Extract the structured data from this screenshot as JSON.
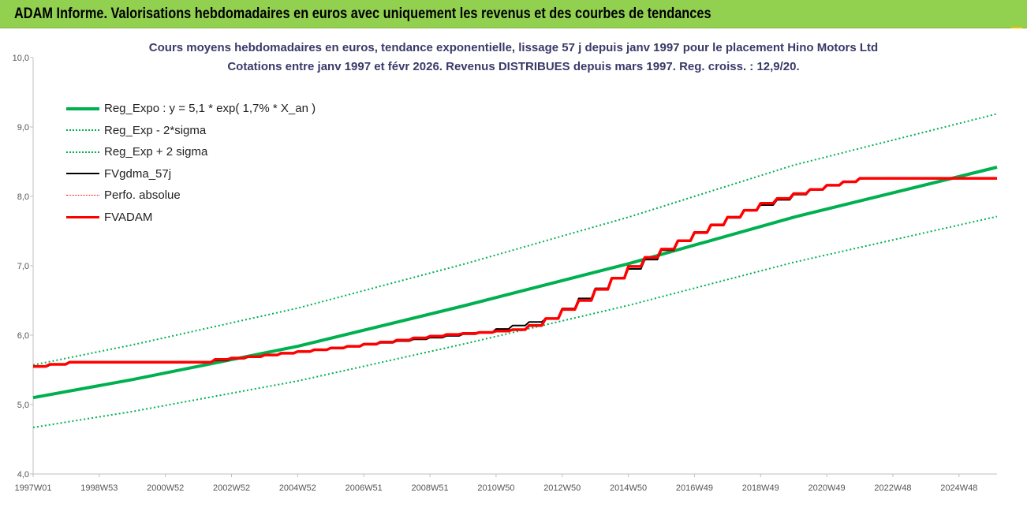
{
  "banner": {
    "title": "ADAM Informe. Valorisations hebdomadaires en euros avec uniquement les revenus et des courbes de tendances"
  },
  "colors": {
    "banner_bg": "#92d050",
    "reg_expo": "#00b050",
    "fvadam": "#ff0000",
    "fvgdma": "#000000",
    "perfo": "#ff0000"
  },
  "chart_data": {
    "type": "line",
    "title_line1": "Cours moyens hebdomadaires en euros, tendance exponentielle, lissage 57 j depuis janv 1997 pour le placement Hino Motors Ltd",
    "title_line2": "Cotations entre janv 1997 et févr 2026. Revenus DISTRIBUES depuis mars 1997. Reg. croiss. : 12,9/20.",
    "xlabel": "",
    "ylabel": "",
    "ylim": [
      4.0,
      10.0
    ],
    "y_ticks": [
      "4,0",
      "5,0",
      "6,0",
      "7,0",
      "8,0",
      "9,0",
      "10,0"
    ],
    "x_tick_labels": [
      "1997W01",
      "1998W53",
      "2000W52",
      "2002W52",
      "2004W52",
      "2006W51",
      "2008W51",
      "2010W50",
      "2012W50",
      "2014W50",
      "2016W49",
      "2018W49",
      "2020W49",
      "2022W48",
      "2024W48"
    ],
    "x_range_years": [
      1997.0,
      2026.15
    ],
    "grid": "none",
    "legend_position": "top-left",
    "legend": [
      {
        "key": "reg_expo",
        "label": "Reg_Expo : y = 5,1 * exp( 1,7% *  X_an )"
      },
      {
        "key": "reg_minus",
        "label": "Reg_Exp - 2*sigma"
      },
      {
        "key": "reg_plus",
        "label": "Reg_Exp + 2 sigma"
      },
      {
        "key": "fvgdma",
        "label": "FVgdma_57j"
      },
      {
        "key": "perfo",
        "label": "Perfo. absolue"
      },
      {
        "key": "fvadam",
        "label": "FVADAM"
      }
    ],
    "series": [
      {
        "name": "Reg_Expo : y = 5,1 * exp( 1,7% *  X_an )",
        "key": "reg_expo",
        "x": [
          1997,
          2000,
          2005,
          2010,
          2015,
          2020,
          2026.15
        ],
        "values": [
          5.1,
          5.36,
          5.84,
          6.42,
          7.03,
          7.7,
          8.42
        ]
      },
      {
        "name": "Reg_Exp - 2*sigma",
        "key": "reg_minus",
        "x": [
          1997,
          2000,
          2005,
          2010,
          2015,
          2020,
          2026.15
        ],
        "values": [
          4.67,
          4.9,
          5.34,
          5.87,
          6.43,
          7.05,
          7.71
        ]
      },
      {
        "name": "Reg_Exp + 2 sigma",
        "key": "reg_plus",
        "x": [
          1997,
          2000,
          2005,
          2010,
          2015,
          2020,
          2026.15
        ],
        "values": [
          5.57,
          5.86,
          6.39,
          7.02,
          7.7,
          8.45,
          9.19
        ]
      },
      {
        "name": "FVADAM",
        "key": "fvadam",
        "x": [
          1997.0,
          1997.5,
          1998.1,
          2000.0,
          2002.0,
          2002.5,
          2003.5,
          2004.5,
          2005.5,
          2006.5,
          2007.5,
          2008.5,
          2009.5,
          2010.5,
          2011.5,
          2012.0,
          2012.5,
          2013.0,
          2013.5,
          2014.0,
          2014.5,
          2015.0,
          2015.5,
          2016.0,
          2016.5,
          2017.0,
          2017.5,
          2018.0,
          2018.5,
          2019.0,
          2019.5,
          2020.0,
          2020.5,
          2021.0,
          2021.5,
          2022.0,
          2024.5,
          2026.15
        ],
        "values": [
          5.55,
          5.58,
          5.61,
          5.61,
          5.61,
          5.65,
          5.69,
          5.74,
          5.79,
          5.84,
          5.9,
          5.96,
          6.01,
          6.04,
          6.08,
          6.14,
          6.24,
          6.37,
          6.5,
          6.66,
          6.82,
          6.99,
          7.12,
          7.24,
          7.36,
          7.48,
          7.59,
          7.7,
          7.8,
          7.9,
          7.97,
          8.04,
          8.1,
          8.16,
          8.21,
          8.26,
          8.26,
          8.26
        ]
      },
      {
        "name": "FVgdma_57j",
        "key": "fvgdma",
        "x": [
          1997.0,
          1998.1,
          2002.0,
          2006.5,
          2010.5,
          2012.5,
          2014.5,
          2016.5,
          2018.5,
          2020.5,
          2022.0,
          2026.15
        ],
        "values": [
          5.55,
          5.61,
          5.61,
          5.84,
          6.04,
          6.24,
          6.82,
          7.36,
          7.8,
          8.1,
          8.26,
          8.26
        ]
      }
    ]
  }
}
